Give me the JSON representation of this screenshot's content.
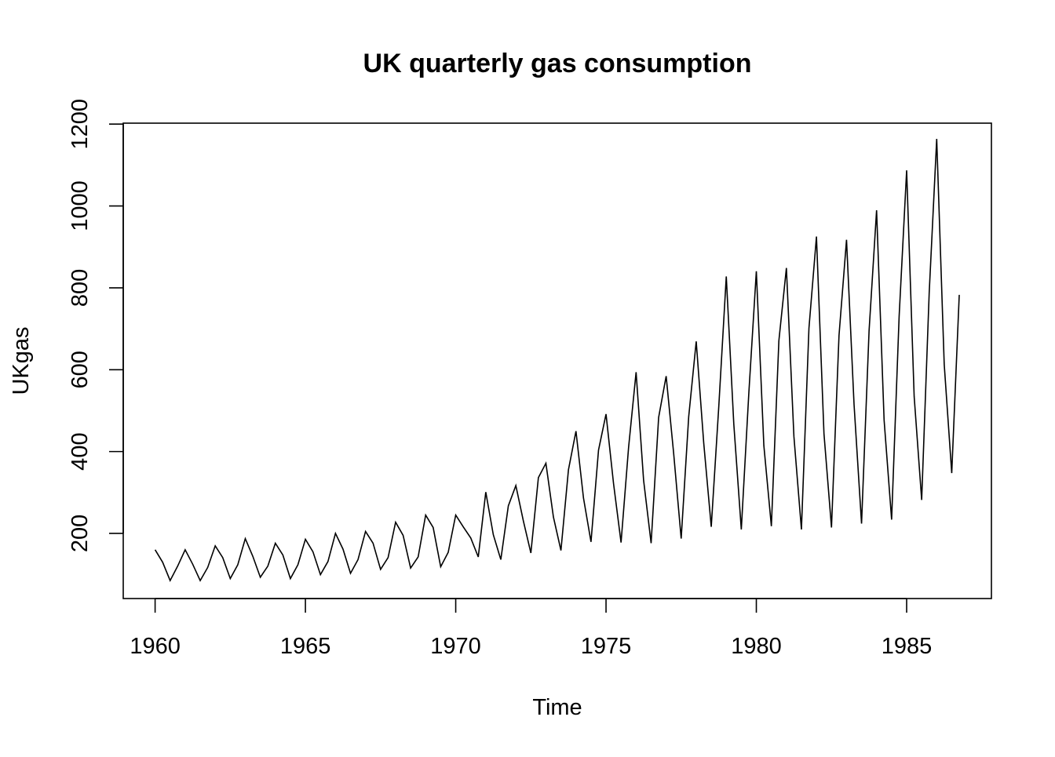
{
  "chart_data": {
    "type": "line",
    "title": "UK quarterly gas consumption",
    "xlabel": "Time",
    "ylabel": "UKgas",
    "xlim": [
      1958.94,
      1987.82
    ],
    "ylim": [
      40.9,
      1202.3
    ],
    "xticks": [
      1960,
      1965,
      1970,
      1975,
      1980,
      1985
    ],
    "yticks": [
      200,
      400,
      600,
      800,
      1000,
      1200
    ],
    "grid": false,
    "legend": "none",
    "series": [
      {
        "name": "",
        "color": "#000000",
        "x": [
          1960.0,
          1960.25,
          1960.5,
          1960.75,
          1961.0,
          1961.25,
          1961.5,
          1961.75,
          1962.0,
          1962.25,
          1962.5,
          1962.75,
          1963.0,
          1963.25,
          1963.5,
          1963.75,
          1964.0,
          1964.25,
          1964.5,
          1964.75,
          1965.0,
          1965.25,
          1965.5,
          1965.75,
          1966.0,
          1966.25,
          1966.5,
          1966.75,
          1967.0,
          1967.25,
          1967.5,
          1967.75,
          1968.0,
          1968.25,
          1968.5,
          1968.75,
          1969.0,
          1969.25,
          1969.5,
          1969.75,
          1970.0,
          1970.25,
          1970.5,
          1970.75,
          1971.0,
          1971.25,
          1971.5,
          1971.75,
          1972.0,
          1972.25,
          1972.5,
          1972.75,
          1973.0,
          1973.25,
          1973.5,
          1973.75,
          1974.0,
          1974.25,
          1974.5,
          1974.75,
          1975.0,
          1975.25,
          1975.5,
          1975.75,
          1976.0,
          1976.25,
          1976.5,
          1976.75,
          1977.0,
          1977.25,
          1977.5,
          1977.75,
          1978.0,
          1978.25,
          1978.5,
          1978.75,
          1979.0,
          1979.25,
          1979.5,
          1979.75,
          1980.0,
          1980.25,
          1980.5,
          1980.75,
          1981.0,
          1981.25,
          1981.5,
          1981.75,
          1982.0,
          1982.25,
          1982.5,
          1982.75,
          1983.0,
          1983.25,
          1983.5,
          1983.75,
          1984.0,
          1984.25,
          1984.5,
          1984.75,
          1985.0,
          1985.25,
          1985.5,
          1985.75,
          1986.0,
          1986.25,
          1986.5,
          1986.75
        ],
        "values": [
          160.1,
          129.7,
          84.8,
          120.1,
          160.1,
          124.9,
          84.8,
          116.9,
          169.7,
          140.9,
          89.7,
          123.3,
          187.3,
          144.1,
          92.9,
          120.1,
          176.1,
          147.3,
          89.7,
          123.3,
          185.7,
          155.3,
          99.3,
          131.3,
          200.1,
          161.7,
          102.5,
          136.1,
          204.9,
          176.1,
          112.1,
          140.9,
          227.3,
          195.3,
          115.3,
          142.5,
          244.9,
          214.5,
          118.5,
          153.7,
          244.9,
          216.1,
          188.9,
          142.5,
          301.0,
          196.9,
          136.1,
          267.3,
          317.0,
          230.5,
          152.1,
          336.2,
          371.4,
          240.1,
          158.5,
          355.4,
          449.9,
          286.6,
          179.3,
          403.4,
          491.5,
          321.8,
          177.7,
          409.8,
          593.9,
          329.8,
          176.1,
          483.5,
          584.3,
          395.4,
          187.3,
          485.1,
          669.2,
          421.0,
          216.1,
          509.1,
          827.7,
          467.5,
          209.7,
          542.7,
          840.5,
          414.6,
          217.7,
          670.8,
          848.5,
          437.0,
          209.7,
          701.2,
          925.3,
          443.4,
          214.5,
          683.6,
          917.3,
          515.5,
          224.1,
          694.8,
          989.4,
          477.1,
          233.7,
          730.0,
          1087.0,
          534.7,
          281.8,
          787.6,
          1163.9,
          613.1,
          347.4,
          782.8
        ]
      }
    ]
  }
}
